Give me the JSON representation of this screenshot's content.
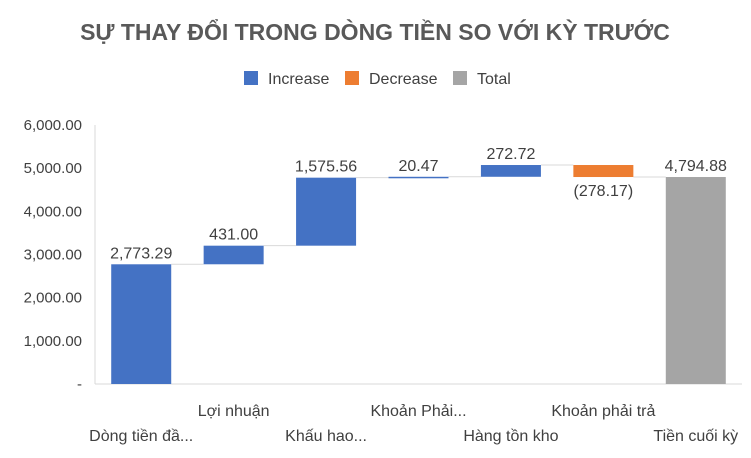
{
  "chart_data": {
    "type": "waterfall",
    "title": "SỰ THAY ĐỔI TRONG DÒNG TIỀN SO VỚI KỲ TRƯỚC",
    "legend": {
      "position": "top",
      "items": [
        {
          "key": "increase",
          "label": "Increase"
        },
        {
          "key": "decrease",
          "label": "Decrease"
        },
        {
          "key": "total",
          "label": "Total"
        }
      ]
    },
    "colors": {
      "increase": "#4472C4",
      "decrease": "#ED7D31",
      "total": "#A5A5A5",
      "axis": "#D9D9D9",
      "connector": "#D9D9D9",
      "text": "#404040",
      "title": "#595959"
    },
    "ylim": [
      0,
      6000
    ],
    "yticks": [
      {
        "value": 0,
        "label": "-"
      },
      {
        "value": 1000,
        "label": "1,000.00"
      },
      {
        "value": 2000,
        "label": "2,000.00"
      },
      {
        "value": 3000,
        "label": "3,000.00"
      },
      {
        "value": 4000,
        "label": "4,000.00"
      },
      {
        "value": 5000,
        "label": "5,000.00"
      },
      {
        "value": 6000,
        "label": "6,000.00"
      }
    ],
    "gridlines": false,
    "categories": [
      "Dòng tiền đầ...",
      "Lợi nhuận",
      "Khấu hao...",
      "Khoản Phải...",
      "Hàng tồn kho",
      "Khoản phải trả",
      "Tiền cuối kỳ"
    ],
    "values": [
      2773.29,
      431.0,
      1575.56,
      20.47,
      272.72,
      -278.17,
      4794.88
    ],
    "kinds": [
      "increase",
      "increase",
      "increase",
      "increase",
      "increase",
      "decrease",
      "total"
    ],
    "labels": [
      "2,773.29",
      "431.00",
      "1,575.56",
      "20.47",
      "272.72",
      "(278.17)",
      "4,794.88"
    ]
  }
}
